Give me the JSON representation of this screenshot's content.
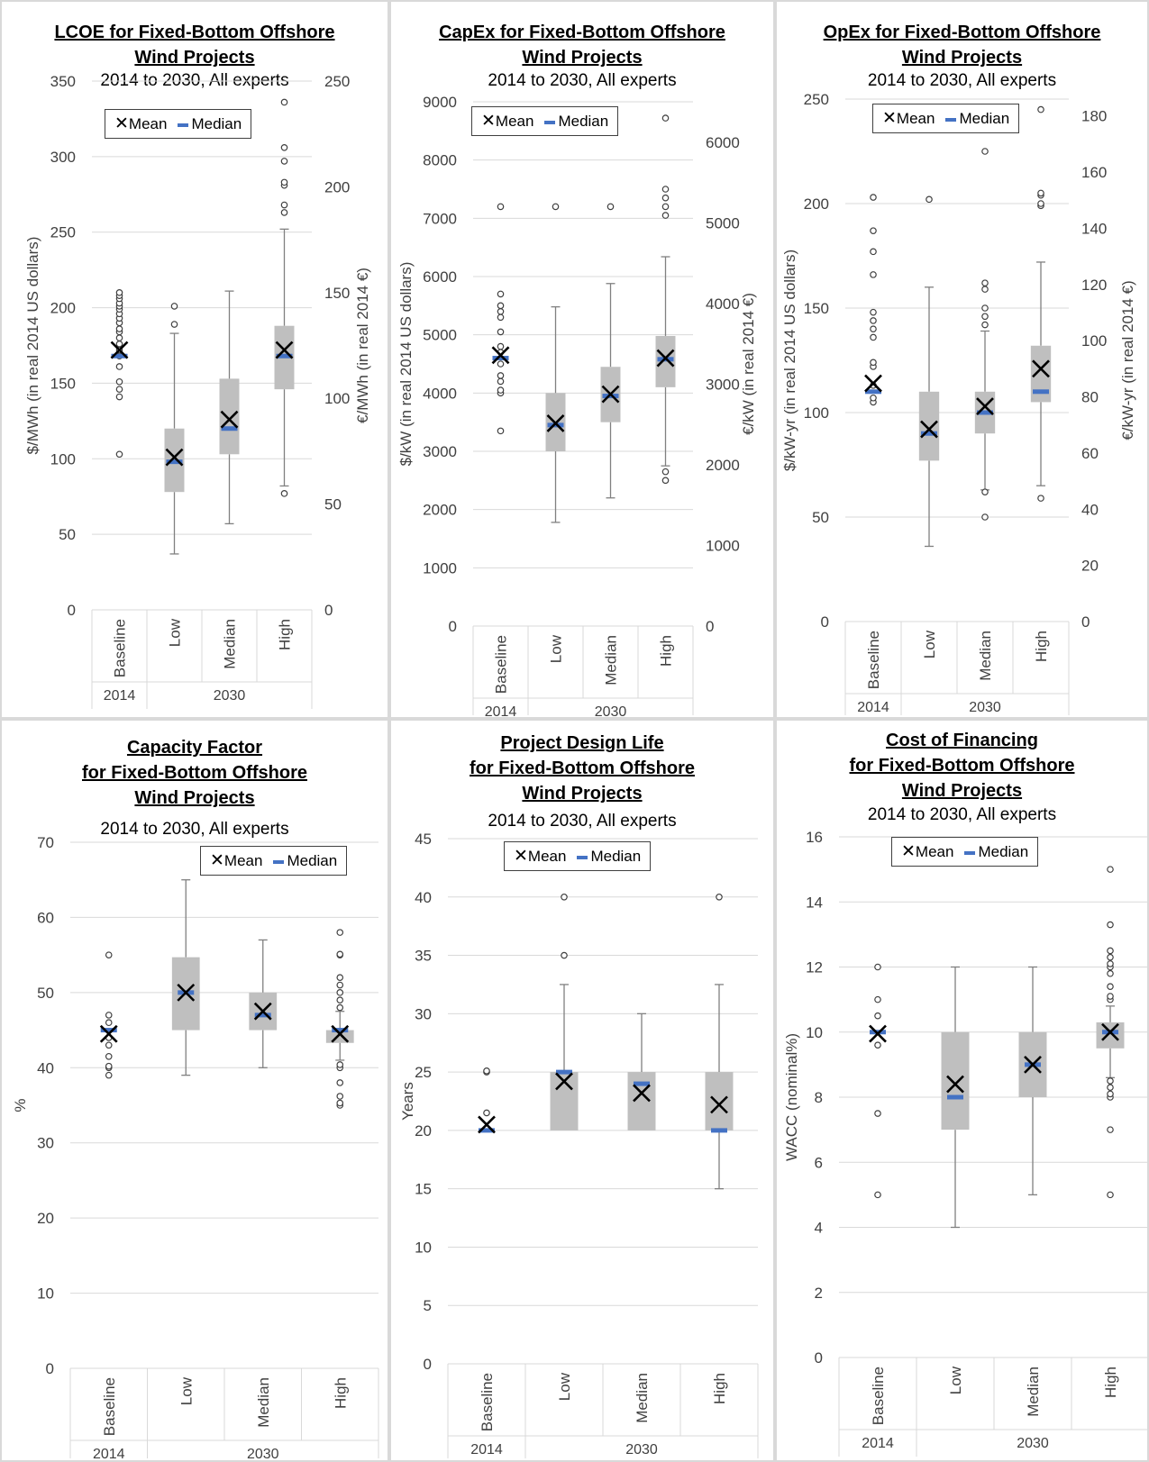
{
  "legend": {
    "mean": "Mean",
    "median": "Median"
  },
  "colors": {
    "box": "#bfbfbf",
    "median": "#4472c4",
    "mean": "#000000",
    "whisker": "#808080",
    "grid": "#d9d9d9"
  },
  "chart_data": [
    {
      "type": "box",
      "title_lines": [
        "LCOE for Fixed-Bottom Offshore",
        "Wind Projects"
      ],
      "subtitle": "2014 to 2030, All experts",
      "ylabel": "$/MWh (in real 2014 US dollars)",
      "ylabel_right": "€/MWh (in real 2014 €)",
      "ylim": [
        0,
        350
      ],
      "yticks": [
        0,
        50,
        100,
        150,
        200,
        250,
        300,
        350
      ],
      "ylim_right": [
        0,
        250
      ],
      "yticks_right": [
        0,
        50,
        100,
        150,
        200,
        250
      ],
      "categories": [
        "Baseline",
        "Low",
        "Median",
        "High"
      ],
      "groups": [
        {
          "label": "2014",
          "span": 1
        },
        {
          "label": "2030",
          "span": 3
        }
      ],
      "boxes": [
        {
          "q1": 168,
          "q3": 168,
          "median": 168,
          "mean": 172,
          "lower": 168,
          "upper": 168,
          "outliers": [
            103,
            141,
            146,
            151,
            161,
            168,
            172,
            176,
            180,
            184,
            186,
            190,
            193,
            196,
            199,
            201,
            203,
            206,
            208,
            210
          ]
        },
        {
          "q1": 78,
          "q3": 120,
          "median": 98,
          "mean": 101,
          "lower": 37,
          "upper": 183,
          "outliers": [
            189,
            201
          ]
        },
        {
          "q1": 103,
          "q3": 153,
          "median": 120,
          "mean": 126,
          "lower": 57,
          "upper": 211,
          "outliers": []
        },
        {
          "q1": 146,
          "q3": 188,
          "median": 168,
          "mean": 172,
          "lower": 82,
          "upper": 252,
          "outliers": [
            77,
            263,
            268,
            281,
            283,
            297,
            306,
            336
          ]
        }
      ]
    },
    {
      "type": "box",
      "title_lines": [
        "CapEx for Fixed-Bottom Offshore",
        "Wind Projects"
      ],
      "subtitle": "2014 to 2030, All experts",
      "ylabel": "$/kW (in real 2014 US dollars)",
      "ylabel_right": "€/kW (in real 2014 €)",
      "ylim": [
        0,
        9000
      ],
      "yticks": [
        0,
        1000,
        2000,
        3000,
        4000,
        5000,
        6000,
        7000,
        8000,
        9000
      ],
      "ylim_right": [
        0,
        6500
      ],
      "yticks_right": [
        0,
        1000,
        2000,
        3000,
        4000,
        5000,
        6000
      ],
      "categories": [
        "Baseline",
        "Low",
        "Median",
        "High"
      ],
      "groups": [
        {
          "label": "2014",
          "span": 1
        },
        {
          "label": "2030",
          "span": 3
        }
      ],
      "boxes": [
        {
          "q1": 4600,
          "q3": 4600,
          "median": 4600,
          "mean": 4650,
          "lower": 4600,
          "upper": 4600,
          "outliers": [
            3350,
            4000,
            4050,
            4200,
            4300,
            4500,
            4700,
            4800,
            5050,
            5300,
            5400,
            5500,
            5700,
            7200
          ]
        },
        {
          "q1": 3000,
          "q3": 4000,
          "median": 3450,
          "mean": 3480,
          "lower": 1780,
          "upper": 5480,
          "outliers": [
            7200
          ]
        },
        {
          "q1": 3500,
          "q3": 4450,
          "median": 3950,
          "mean": 3980,
          "lower": 2200,
          "upper": 5880,
          "outliers": [
            7200
          ]
        },
        {
          "q1": 4100,
          "q3": 4980,
          "median": 4580,
          "mean": 4600,
          "lower": 2750,
          "upper": 6340,
          "outliers": [
            2500,
            2650,
            7050,
            7200,
            7350,
            7500,
            8720
          ]
        }
      ]
    },
    {
      "type": "box",
      "title_lines": [
        "OpEx for Fixed-Bottom Offshore",
        "Wind Projects"
      ],
      "subtitle": "2014 to 2030, All experts",
      "ylabel": "$/kW-yr (in real 2014 US dollars)",
      "ylabel_right": "€/kW-yr (in real 2014 €)",
      "ylim": [
        0,
        250
      ],
      "yticks": [
        0,
        50,
        100,
        150,
        200,
        250
      ],
      "ylim_right": [
        0,
        186
      ],
      "yticks_right": [
        0,
        20,
        40,
        60,
        80,
        100,
        120,
        140,
        160,
        180
      ],
      "categories": [
        "Baseline",
        "Low",
        "Median",
        "High"
      ],
      "groups": [
        {
          "label": "2014",
          "span": 1
        },
        {
          "label": "2030",
          "span": 3
        }
      ],
      "boxes": [
        {
          "q1": 110,
          "q3": 110,
          "median": 110,
          "mean": 114,
          "lower": 110,
          "upper": 110,
          "outliers": [
            105,
            107,
            113,
            122,
            124,
            136,
            140,
            144,
            148,
            166,
            177,
            187,
            203
          ]
        },
        {
          "q1": 77,
          "q3": 110,
          "median": 90,
          "mean": 92,
          "lower": 36,
          "upper": 160,
          "outliers": [
            202
          ]
        },
        {
          "q1": 90,
          "q3": 110,
          "median": 100,
          "mean": 103,
          "lower": 63,
          "upper": 139,
          "outliers": [
            50,
            62,
            142,
            146,
            150,
            159,
            162,
            225
          ]
        },
        {
          "q1": 105,
          "q3": 132,
          "median": 110,
          "mean": 121,
          "lower": 65,
          "upper": 172,
          "outliers": [
            59,
            199,
            200,
            204,
            205,
            245
          ]
        }
      ]
    },
    {
      "type": "box",
      "title_lines": [
        "Capacity Factor",
        "for Fixed-Bottom Offshore",
        "Wind Projects"
      ],
      "subtitle": "2014 to 2030, All experts",
      "ylabel": "%",
      "ylabel_right": "",
      "ylim": [
        0,
        70
      ],
      "yticks": [
        0,
        10,
        20,
        30,
        40,
        50,
        60,
        70
      ],
      "categories": [
        "Baseline",
        "Low",
        "Median",
        "High"
      ],
      "groups": [
        {
          "label": "2014",
          "span": 1
        },
        {
          "label": "2030",
          "span": 3
        }
      ],
      "boxes": [
        {
          "q1": 45,
          "q3": 45,
          "median": 45,
          "mean": 44.5,
          "lower": 45,
          "upper": 45,
          "outliers": [
            39,
            40,
            40.2,
            41.5,
            43,
            44,
            46,
            47,
            55
          ]
        },
        {
          "q1": 45,
          "q3": 54.7,
          "median": 50,
          "mean": 50,
          "lower": 39,
          "upper": 65,
          "outliers": []
        },
        {
          "q1": 45,
          "q3": 50,
          "median": 47,
          "mean": 47.5,
          "lower": 40,
          "upper": 57,
          "outliers": []
        },
        {
          "q1": 43.3,
          "q3": 45,
          "median": 45,
          "mean": 44.5,
          "lower": 41,
          "upper": 47.5,
          "outliers": [
            35,
            35.3,
            36.2,
            38,
            40,
            40.4,
            48,
            49,
            50,
            51,
            52,
            55,
            55.1,
            58
          ]
        }
      ]
    },
    {
      "type": "box",
      "title_lines": [
        "Project Design Life",
        "for Fixed-Bottom Offshore",
        "Wind Projects"
      ],
      "subtitle": "2014 to 2030, All experts",
      "ylabel": "Years",
      "ylabel_right": "",
      "ylim": [
        0,
        45
      ],
      "yticks": [
        0,
        5,
        10,
        15,
        20,
        25,
        30,
        35,
        40,
        45
      ],
      "categories": [
        "Baseline",
        "Low",
        "Median",
        "High"
      ],
      "groups": [
        {
          "label": "2014",
          "span": 1
        },
        {
          "label": "2030",
          "span": 3
        }
      ],
      "boxes": [
        {
          "q1": 20,
          "q3": 20,
          "median": 20,
          "mean": 20.5,
          "lower": 20,
          "upper": 20,
          "outliers": [
            21.5,
            25,
            25.1
          ]
        },
        {
          "q1": 20,
          "q3": 25,
          "median": 25,
          "mean": 24.2,
          "lower": 20,
          "upper": 32.5,
          "outliers": [
            35,
            40
          ]
        },
        {
          "q1": 20,
          "q3": 25,
          "median": 24,
          "mean": 23.2,
          "lower": 20,
          "upper": 30,
          "outliers": []
        },
        {
          "q1": 20,
          "q3": 25,
          "median": 20,
          "mean": 22.2,
          "lower": 15,
          "upper": 32.5,
          "outliers": [
            40
          ]
        }
      ]
    },
    {
      "type": "box",
      "title_lines": [
        "Cost of Financing",
        "for Fixed-Bottom Offshore",
        "Wind Projects"
      ],
      "subtitle": "2014 to 2030, All experts",
      "ylabel": "WACC (nominal%)",
      "ylabel_right": "",
      "ylim": [
        0,
        16
      ],
      "yticks": [
        0,
        2,
        4,
        6,
        8,
        10,
        12,
        14,
        16
      ],
      "categories": [
        "Baseline",
        "Low",
        "Median",
        "High"
      ],
      "groups": [
        {
          "label": "2014",
          "span": 1
        },
        {
          "label": "2030",
          "span": 3
        }
      ],
      "boxes": [
        {
          "q1": 10,
          "q3": 10,
          "median": 10,
          "mean": 9.95,
          "lower": 10,
          "upper": 10,
          "outliers": [
            5,
            7.5,
            9.6,
            10.5,
            11,
            12
          ]
        },
        {
          "q1": 7,
          "q3": 10,
          "median": 8,
          "mean": 8.4,
          "lower": 4,
          "upper": 12,
          "outliers": []
        },
        {
          "q1": 8,
          "q3": 10,
          "median": 9,
          "mean": 9,
          "lower": 5,
          "upper": 12,
          "outliers": []
        },
        {
          "q1": 9.5,
          "q3": 10.3,
          "median": 10,
          "mean": 10,
          "lower": 8.6,
          "upper": 10.8,
          "outliers": [
            5,
            7,
            8,
            8.1,
            8.3,
            8.5,
            11,
            11.1,
            11.4,
            11.8,
            12,
            12.1,
            12.3,
            12.5,
            13.3,
            15
          ]
        }
      ]
    }
  ]
}
